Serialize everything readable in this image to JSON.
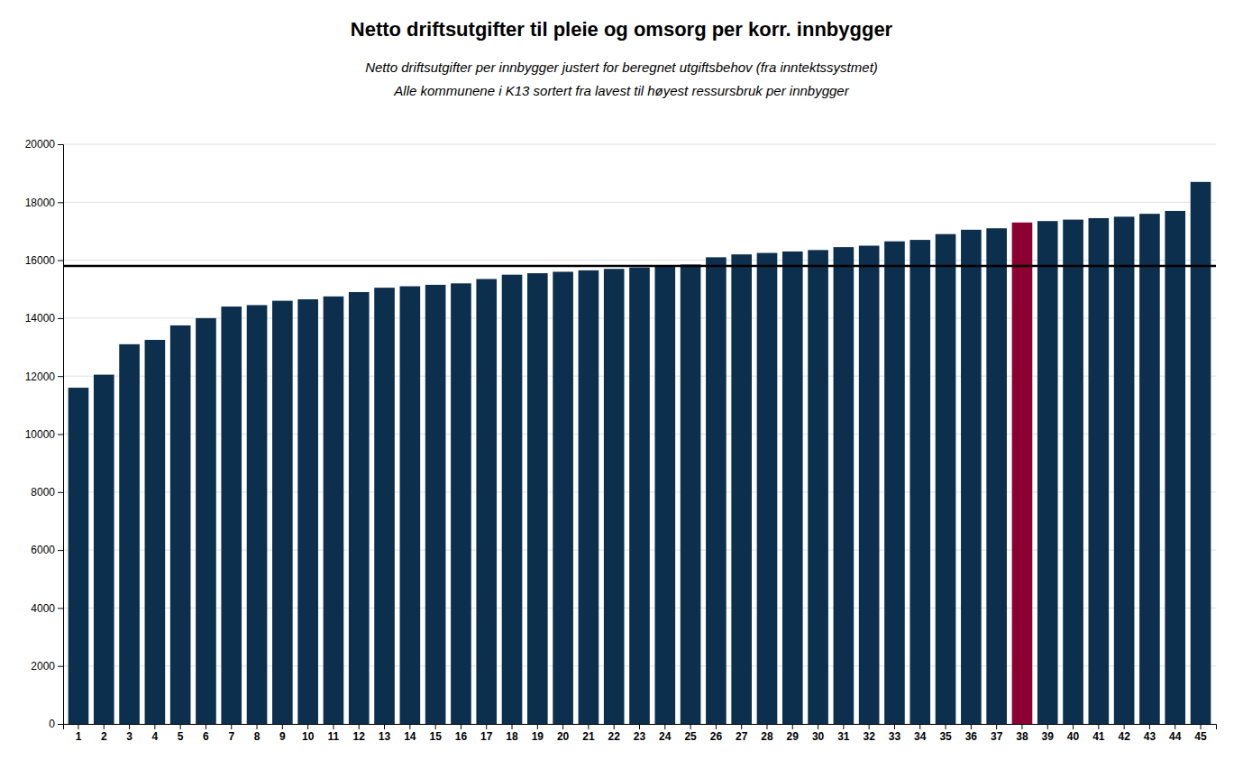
{
  "chart_data": {
    "type": "bar",
    "title": "Netto driftsutgifter til pleie og omsorg per korr. innbygger",
    "subtitle": [
      "Netto driftsutgifter per innbygger justert for beregnet utgiftsbehov (fra inntektssystmet)",
      "Alle kommunene i K13 sortert fra lavest til høyest ressursbruk per innbygger"
    ],
    "categories": [
      "1",
      "2",
      "3",
      "4",
      "5",
      "6",
      "7",
      "8",
      "9",
      "10",
      "11",
      "12",
      "13",
      "14",
      "15",
      "16",
      "17",
      "18",
      "19",
      "20",
      "21",
      "22",
      "23",
      "24",
      "25",
      "26",
      "27",
      "28",
      "29",
      "30",
      "31",
      "32",
      "33",
      "34",
      "35",
      "36",
      "37",
      "38",
      "39",
      "40",
      "41",
      "42",
      "43",
      "44",
      "45"
    ],
    "values": [
      11600,
      12050,
      13100,
      13250,
      13750,
      14000,
      14400,
      14450,
      14600,
      14650,
      14750,
      14900,
      15050,
      15100,
      15150,
      15200,
      15350,
      15500,
      15550,
      15600,
      15650,
      15700,
      15750,
      15800,
      15850,
      16100,
      16200,
      16250,
      16300,
      16350,
      16450,
      16500,
      16650,
      16700,
      16900,
      17050,
      17100,
      17300,
      17350,
      17400,
      17450,
      17500,
      17600,
      17700,
      18700
    ],
    "colors": [
      "#0d2f4e",
      "#0d2f4e",
      "#0d2f4e",
      "#0d2f4e",
      "#0d2f4e",
      "#0d2f4e",
      "#0d2f4e",
      "#0d2f4e",
      "#0d2f4e",
      "#0d2f4e",
      "#0d2f4e",
      "#0d2f4e",
      "#0d2f4e",
      "#0d2f4e",
      "#0d2f4e",
      "#0d2f4e",
      "#0d2f4e",
      "#0d2f4e",
      "#0d2f4e",
      "#0d2f4e",
      "#0d2f4e",
      "#0d2f4e",
      "#0d2f4e",
      "#0d2f4e",
      "#0d2f4e",
      "#0d2f4e",
      "#0d2f4e",
      "#0d2f4e",
      "#0d2f4e",
      "#0d2f4e",
      "#0d2f4e",
      "#0d2f4e",
      "#0d2f4e",
      "#0d2f4e",
      "#0d2f4e",
      "#0d2f4e",
      "#0d2f4e",
      "#8b0030",
      "#0d2f4e",
      "#0d2f4e",
      "#0d2f4e",
      "#0d2f4e",
      "#0d2f4e",
      "#0d2f4e",
      "#0d2f4e"
    ],
    "reference_line": 15800,
    "ylim": [
      0,
      20000
    ],
    "yticks": [
      0,
      2000,
      4000,
      6000,
      8000,
      10000,
      12000,
      14000,
      16000,
      18000,
      20000
    ],
    "grid": true
  }
}
